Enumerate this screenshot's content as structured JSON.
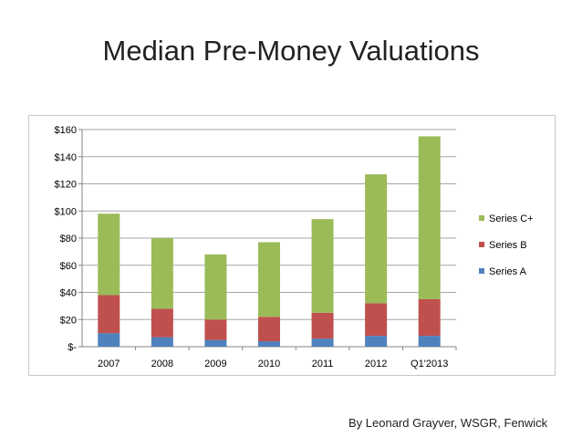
{
  "slide": {
    "title": "Median Pre-Money Valuations",
    "credit": "By Leonard Grayver, WSGR, Fenwick"
  },
  "chart_data": {
    "type": "bar",
    "stacked": true,
    "categories": [
      "2007",
      "2008",
      "2009",
      "2010",
      "2011",
      "2012",
      "Q1'2013"
    ],
    "series": [
      {
        "name": "Series A",
        "color": "#4f81bd",
        "values": [
          10,
          7,
          5,
          4,
          6,
          8,
          8
        ]
      },
      {
        "name": "Series B",
        "color": "#c0504d",
        "values": [
          28,
          21,
          15,
          18,
          19,
          24,
          27
        ]
      },
      {
        "name": "Series C+",
        "color": "#9bbb59",
        "values": [
          60,
          52,
          48,
          55,
          69,
          95,
          120
        ]
      }
    ],
    "y_ticks": [
      "$-",
      "$20",
      "$40",
      "$60",
      "$80",
      "$100",
      "$120",
      "$140",
      "$160"
    ],
    "ylim": [
      0,
      160
    ],
    "xlabel": "",
    "ylabel": "",
    "grid": true,
    "legend": "right"
  }
}
